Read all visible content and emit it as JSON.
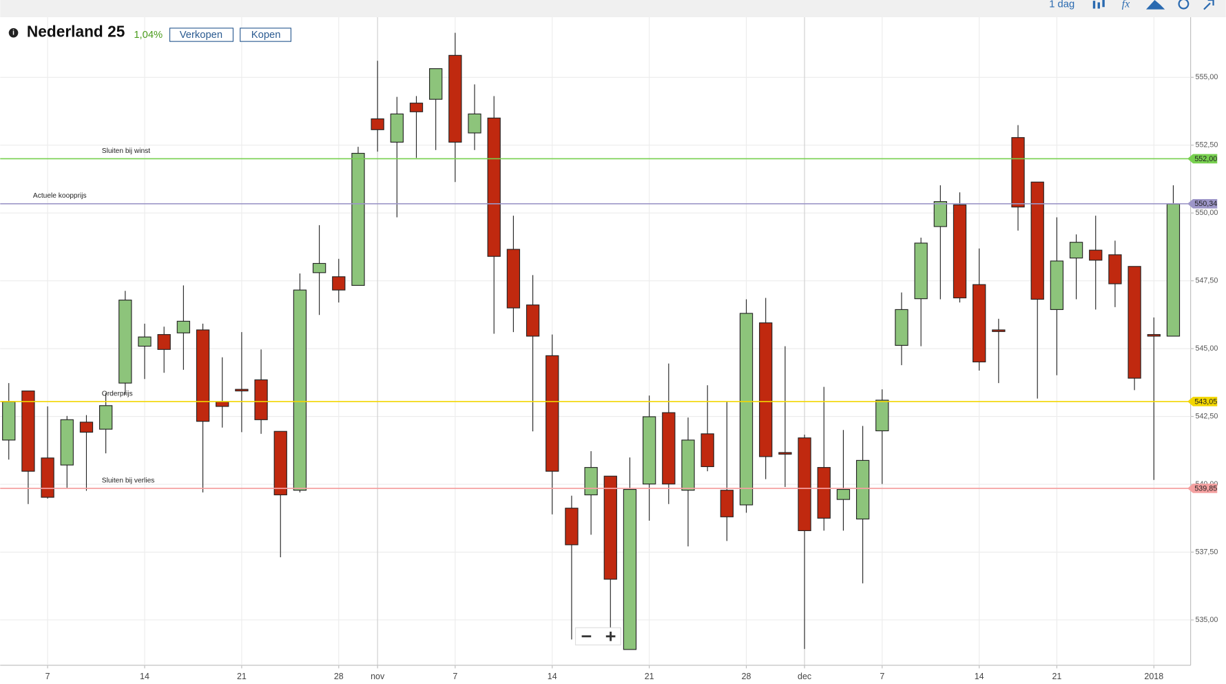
{
  "ui": {
    "instrument": "Nederland 25",
    "change": "1,04%",
    "sell": "Verkopen",
    "buy": "Kopen",
    "interval": "1 dag"
  },
  "chart_data": {
    "type": "candlestick",
    "categories": [
      null,
      null,
      "7",
      null,
      null,
      null,
      null,
      "14",
      null,
      null,
      null,
      null,
      "21",
      null,
      null,
      null,
      null,
      "28",
      null,
      "nov",
      null,
      null,
      null,
      "7",
      null,
      null,
      null,
      null,
      "14",
      null,
      null,
      null,
      null,
      "21",
      null,
      null,
      null,
      null,
      "28",
      null,
      null,
      "dec",
      null,
      null,
      null,
      "7",
      null,
      null,
      null,
      null,
      "14",
      null,
      null,
      null,
      "21",
      null,
      null,
      null,
      null,
      "2018",
      null
    ],
    "open": [
      541.63,
      543.44,
      540.97,
      540.71,
      542.29,
      542.03,
      543.73,
      545.09,
      545.52,
      545.58,
      545.69,
      543.04,
      543.5,
      543.85,
      541.95,
      539.78,
      547.8,
      547.65,
      547.33,
      553.47,
      552.61,
      554.05,
      554.19,
      555.81,
      552.95,
      553.5,
      548.66,
      546.61,
      544.74,
      539.12,
      539.61,
      540.3,
      533.91,
      540.01,
      542.64,
      539.78,
      541.86,
      539.78,
      539.24,
      545.95,
      541.17,
      541.71,
      540.62,
      539.44,
      538.72,
      541.97,
      545.12,
      546.84,
      549.5,
      550.3,
      547.36,
      545.69,
      552.78,
      551.14,
      546.44,
      548.34,
      548.63,
      548.46,
      548.03,
      545.52,
      545.46
    ],
    "high": [
      543.73,
      543.44,
      542.87,
      542.52,
      542.55,
      543.36,
      547.13,
      545.92,
      545.81,
      547.33,
      545.92,
      544.68,
      545.61,
      544.97,
      541.95,
      547.77,
      549.55,
      548.31,
      552.44,
      555.61,
      554.28,
      554.31,
      555.32,
      556.64,
      554.74,
      554.31,
      549.9,
      547.71,
      545.52,
      539.58,
      541.22,
      540.3,
      540.99,
      543.27,
      544.45,
      542.46,
      543.65,
      543.04,
      546.82,
      546.87,
      545.09,
      541.83,
      543.59,
      542.0,
      542.15,
      543.5,
      547.07,
      549.09,
      551.02,
      550.76,
      548.69,
      546.1,
      553.24,
      551.14,
      549.84,
      549.21,
      549.9,
      548.98,
      548.03,
      546.15,
      551.02
    ],
    "low": [
      540.91,
      539.27,
      539.47,
      539.87,
      539.76,
      541.14,
      543.3,
      543.88,
      544.11,
      544.22,
      539.7,
      542.09,
      541.92,
      541.86,
      537.31,
      539.7,
      546.24,
      546.7,
      547.33,
      552.26,
      549.84,
      552.03,
      552.32,
      551.14,
      552.32,
      545.55,
      545.61,
      541.95,
      538.89,
      534.28,
      538.14,
      534.65,
      533.91,
      538.66,
      539.27,
      537.71,
      540.48,
      537.91,
      538.95,
      540.19,
      539.9,
      533.93,
      538.29,
      538.29,
      536.35,
      540.01,
      544.39,
      545.09,
      546.82,
      546.7,
      544.19,
      543.73,
      549.35,
      543.16,
      544.02,
      546.82,
      546.44,
      546.53,
      543.47,
      540.16,
      545.46
    ],
    "close": [
      543.04,
      540.48,
      539.52,
      542.38,
      541.92,
      542.9,
      546.79,
      545.43,
      544.97,
      546.01,
      542.32,
      542.87,
      543.44,
      542.38,
      539.61,
      547.16,
      548.14,
      547.16,
      552.2,
      553.07,
      553.65,
      553.73,
      555.32,
      552.61,
      553.65,
      548.4,
      546.5,
      545.46,
      540.48,
      537.77,
      540.62,
      536.5,
      539.81,
      542.49,
      540.01,
      541.63,
      540.65,
      538.8,
      546.3,
      541.02,
      541.11,
      538.29,
      538.75,
      539.81,
      540.88,
      543.1,
      546.44,
      548.89,
      550.42,
      546.87,
      544.51,
      545.63,
      550.22,
      546.82,
      548.23,
      548.92,
      548.26,
      547.39,
      543.91,
      545.46,
      550.33
    ],
    "up_color": "#8dc47b",
    "down_color": "#c0290f",
    "ylim": [
      533.33,
      557.13
    ],
    "yticks": [
      {
        "value": 535,
        "label": "535,00"
      },
      {
        "value": 537.5,
        "label": "537,50"
      },
      {
        "value": 540,
        "label": "540,00"
      },
      {
        "value": 542.5,
        "label": "542,50"
      },
      {
        "value": 545,
        "label": "545,00"
      },
      {
        "value": 547.5,
        "label": "547,50"
      },
      {
        "value": 550,
        "label": "550,00"
      },
      {
        "value": 552.5,
        "label": "552,50"
      },
      {
        "value": 555,
        "label": "555,00"
      }
    ],
    "grid": true,
    "levels": [
      {
        "name": "Sluiten bij winst",
        "value": 552.0,
        "label": "552,00",
        "color": "#77d04f"
      },
      {
        "name": "Actuele koopprijs",
        "value": 550.34,
        "label": "550,34",
        "color": "#9d96c8"
      },
      {
        "name": "Orderprijs",
        "value": 543.05,
        "label": "543,05",
        "color": "#f2d600"
      },
      {
        "name": "Sluiten bij verlies",
        "value": 539.85,
        "label": "539,85",
        "color": "#f4a0a0"
      }
    ]
  }
}
